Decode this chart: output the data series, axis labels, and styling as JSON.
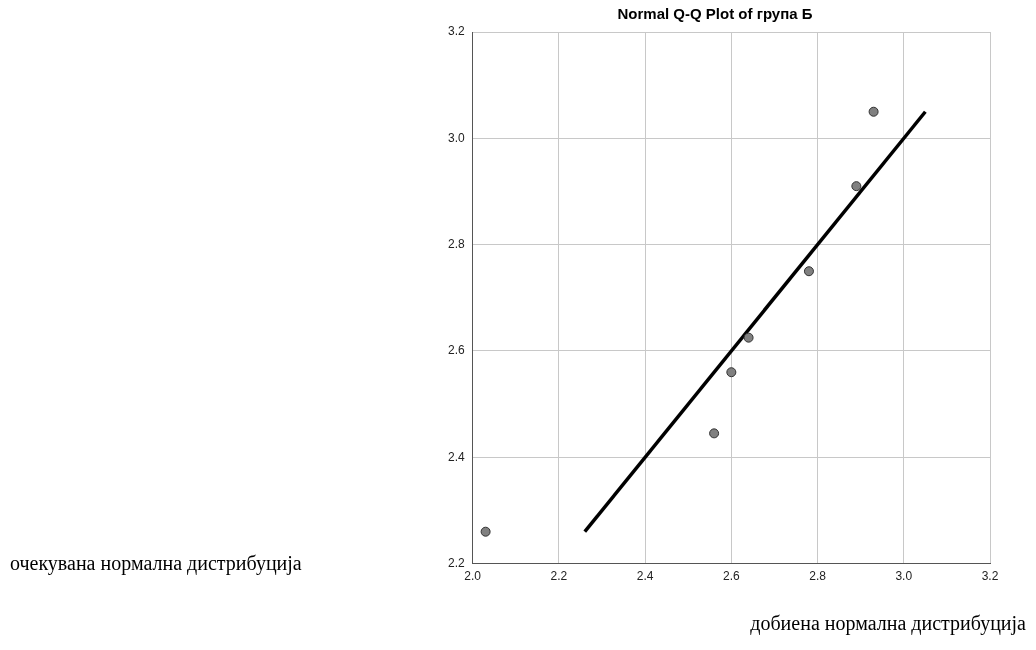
{
  "chart_data": {
    "type": "scatter",
    "title": "Normal Q-Q Plot of група Б",
    "xlabel": "добиена нормална дистрибуција",
    "annotations": [
      "очекувана нормална дистрибуција"
    ],
    "series": [
      {
        "color": "#808080",
        "x": [
          2.03,
          2.56,
          2.6,
          2.64,
          2.78,
          2.89,
          2.93
        ],
        "values": [
          2.26,
          2.445,
          2.56,
          2.625,
          2.75,
          2.91,
          3.05
        ]
      },
      {
        "type": "line",
        "color": "#000000",
        "x": [
          2.26,
          3.05
        ],
        "values": [
          2.26,
          3.05
        ]
      }
    ],
    "xlim": [
      2.0,
      3.2
    ],
    "xticks": [
      {
        "value": 2.0,
        "label": "2.0"
      },
      {
        "value": 2.2,
        "label": "2.2"
      },
      {
        "value": 2.4,
        "label": "2.4"
      },
      {
        "value": 2.6,
        "label": "2.6"
      },
      {
        "value": 2.8,
        "label": "2.8"
      },
      {
        "value": 3.0,
        "label": "3.0"
      },
      {
        "value": 3.2,
        "label": "3.2"
      }
    ],
    "ylim": [
      2.2,
      3.2
    ],
    "yticks": [
      {
        "value": 2.2,
        "label": "2.2"
      },
      {
        "value": 2.4,
        "label": "2.4"
      },
      {
        "value": 2.6,
        "label": "2.6"
      },
      {
        "value": 2.8,
        "label": "2.8"
      },
      {
        "value": 3.0,
        "label": "3.0"
      },
      {
        "value": 3.2,
        "label": "3.2"
      }
    ],
    "grid": true,
    "legend": false
  }
}
